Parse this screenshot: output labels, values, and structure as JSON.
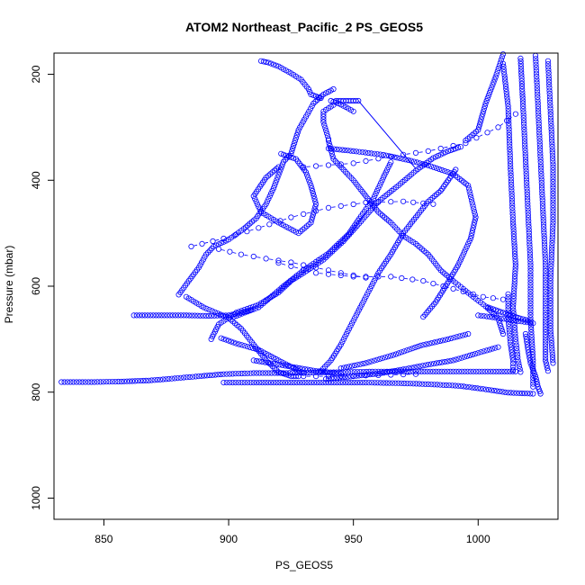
{
  "chart_data": {
    "type": "scatter",
    "title": "ATOM2 Northeast_Pacific_2 PS_GEOS5",
    "xlabel": "PS_GEOS5",
    "ylabel": "Pressure (mbar)",
    "xlim": [
      830,
      1032
    ],
    "ylim": [
      1040,
      160
    ],
    "y_reversed": true,
    "x_ticks": [
      850,
      900,
      950,
      1000
    ],
    "y_ticks": [
      200,
      400,
      600,
      800,
      1000
    ],
    "grid": false,
    "legend": "none",
    "marker": "open-circle",
    "color": "#0000ff",
    "series": [
      {
        "style": "points",
        "points": [
          [
            833,
            781
          ],
          [
            845,
            781
          ],
          [
            857,
            780
          ],
          [
            868,
            778
          ],
          [
            876,
            775
          ],
          [
            888,
            770
          ],
          [
            898,
            766
          ],
          [
            910,
            764
          ],
          [
            922,
            764
          ],
          [
            935,
            763
          ],
          [
            948,
            762
          ],
          [
            960,
            761
          ],
          [
            975,
            761
          ],
          [
            990,
            761
          ],
          [
            1005,
            761
          ],
          [
            1015,
            761
          ]
        ]
      },
      {
        "style": "points",
        "points": [
          [
            862,
            655
          ],
          [
            872,
            655
          ],
          [
            882,
            655
          ],
          [
            892,
            656
          ],
          [
            900,
            655
          ],
          [
            905,
            650
          ],
          [
            909,
            645
          ]
        ]
      },
      {
        "style": "points",
        "points": [
          [
            898,
            782
          ],
          [
            910,
            782
          ],
          [
            925,
            782
          ],
          [
            940,
            782
          ],
          [
            955,
            782
          ],
          [
            968,
            783
          ],
          [
            980,
            785
          ],
          [
            992,
            788
          ],
          [
            1002,
            794
          ],
          [
            1012,
            801
          ],
          [
            1022,
            803
          ]
        ]
      },
      {
        "style": "points",
        "points": [
          [
            943,
            250
          ],
          [
            946,
            250
          ],
          [
            949,
            250
          ],
          [
            952,
            250
          ]
        ]
      },
      {
        "style": "points",
        "points": [
          [
            880,
            616
          ],
          [
            884,
            590
          ],
          [
            888,
            565
          ],
          [
            891,
            540
          ],
          [
            894,
            525
          ],
          [
            900,
            512
          ],
          [
            906,
            492
          ],
          [
            911,
            472
          ],
          [
            915,
            445
          ],
          [
            918,
            415
          ],
          [
            920,
            390
          ],
          [
            922,
            365
          ],
          [
            925,
            350
          ],
          [
            928,
            305
          ],
          [
            931,
            280
          ],
          [
            934,
            255
          ],
          [
            938,
            238
          ],
          [
            942,
            228
          ]
        ]
      },
      {
        "style": "points",
        "points": [
          [
            883,
            620
          ],
          [
            890,
            640
          ],
          [
            900,
            660
          ],
          [
            905,
            680
          ],
          [
            915,
            740
          ],
          [
            920,
            762
          ],
          [
            925,
            770
          ],
          [
            928,
            770
          ]
        ]
      },
      {
        "style": "points",
        "points": [
          [
            893,
            700
          ],
          [
            896,
            672
          ],
          [
            903,
            650
          ],
          [
            912,
            635
          ],
          [
            920,
            612
          ],
          [
            925,
            590
          ],
          [
            930,
            575
          ],
          [
            938,
            550
          ],
          [
            946,
            515
          ],
          [
            953,
            478
          ],
          [
            960,
            440
          ],
          [
            968,
            410
          ],
          [
            975,
            382
          ],
          [
            982,
            358
          ],
          [
            988,
            345
          ],
          [
            993,
            337
          ]
        ]
      },
      {
        "style": "points",
        "points": [
          [
            913,
            175
          ],
          [
            916,
            178
          ],
          [
            920,
            185
          ],
          [
            925,
            198
          ],
          [
            929,
            210
          ],
          [
            932,
            228
          ],
          [
            933,
            238
          ],
          [
            937,
            245
          ]
        ]
      },
      {
        "style": "points",
        "points": [
          [
            921,
            350
          ],
          [
            927,
            360
          ],
          [
            931,
            385
          ],
          [
            933,
            410
          ],
          [
            935,
            445
          ],
          [
            933,
            480
          ],
          [
            928,
            500
          ],
          [
            920,
            480
          ],
          [
            913,
            460
          ],
          [
            910,
            430
          ],
          [
            915,
            395
          ],
          [
            920,
            375
          ]
        ]
      },
      {
        "style": "points",
        "points": [
          [
            937,
            760
          ],
          [
            941,
            740
          ],
          [
            945,
            710
          ],
          [
            950,
            665
          ],
          [
            955,
            620
          ],
          [
            960,
            575
          ],
          [
            965,
            540
          ],
          [
            970,
            500
          ],
          [
            975,
            470
          ],
          [
            980,
            440
          ],
          [
            985,
            420
          ],
          [
            988,
            400
          ],
          [
            991,
            380
          ]
        ]
      },
      {
        "style": "points",
        "points": [
          [
            940,
            325
          ],
          [
            942,
            360
          ],
          [
            950,
            400
          ],
          [
            955,
            430
          ],
          [
            960,
            460
          ],
          [
            965,
            480
          ],
          [
            970,
            505
          ],
          [
            975,
            520
          ],
          [
            980,
            540
          ],
          [
            985,
            570
          ],
          [
            990,
            590
          ],
          [
            994,
            605
          ],
          [
            998,
            620
          ],
          [
            1003,
            638
          ],
          [
            1008,
            660
          ],
          [
            1010,
            690
          ]
        ]
      },
      {
        "style": "points",
        "points": [
          [
            897,
            698
          ],
          [
            903,
            708
          ],
          [
            912,
            720
          ],
          [
            920,
            740
          ],
          [
            927,
            757
          ],
          [
            930,
            764
          ]
        ]
      },
      {
        "style": "points",
        "points": [
          [
            939,
            775
          ],
          [
            950,
            770
          ],
          [
            960,
            765
          ],
          [
            970,
            757
          ],
          [
            980,
            748
          ],
          [
            990,
            740
          ],
          [
            1000,
            726
          ],
          [
            1008,
            715
          ]
        ]
      },
      {
        "style": "points",
        "points": [
          [
            940,
            322
          ],
          [
            938,
            290
          ],
          [
            938,
            270
          ],
          [
            942,
            258
          ]
        ]
      },
      {
        "style": "points",
        "points": [
          [
            941,
            250
          ],
          [
            944,
            255
          ],
          [
            947,
            262
          ],
          [
            950,
            270
          ]
        ]
      },
      {
        "style": "points",
        "points": [
          [
            940,
            340
          ],
          [
            950,
            345
          ],
          [
            962,
            352
          ],
          [
            972,
            362
          ],
          [
            980,
            372
          ],
          [
            990,
            388
          ],
          [
            996,
            410
          ],
          [
            999,
            470
          ],
          [
            997,
            510
          ],
          [
            992,
            560
          ],
          [
            987,
            600
          ],
          [
            983,
            630
          ],
          [
            978,
            658
          ]
        ]
      },
      {
        "style": "points",
        "points": [
          [
            902,
            658
          ],
          [
            912,
            640
          ],
          [
            922,
            600
          ],
          [
            930,
            570
          ],
          [
            940,
            538
          ],
          [
            948,
            502
          ],
          [
            953,
            468
          ],
          [
            958,
            435
          ],
          [
            962,
            395
          ],
          [
            965,
            366
          ]
        ]
      },
      {
        "style": "points",
        "points": [
          [
            945,
            755
          ],
          [
            955,
            745
          ],
          [
            966,
            730
          ],
          [
            977,
            712
          ],
          [
            988,
            700
          ],
          [
            996,
            690
          ]
        ]
      },
      {
        "style": "points",
        "points": [
          [
            910,
            740
          ],
          [
            925,
            752
          ],
          [
            935,
            760
          ],
          [
            945,
            765
          ]
        ]
      },
      {
        "style": "points",
        "points": [
          [
            995,
            325
          ],
          [
            1000,
            305
          ],
          [
            1003,
            255
          ],
          [
            1007,
            205
          ],
          [
            1010,
            162
          ]
        ]
      },
      {
        "style": "points",
        "points": [
          [
            1010,
            180
          ],
          [
            1012,
            260
          ],
          [
            1013,
            380
          ],
          [
            1014,
            480
          ],
          [
            1015,
            560
          ],
          [
            1014,
            640
          ],
          [
            1015,
            700
          ],
          [
            1016,
            740
          ],
          [
            1017,
            762
          ]
        ]
      },
      {
        "style": "points",
        "points": [
          [
            1017,
            170
          ],
          [
            1018,
            260
          ],
          [
            1019,
            360
          ],
          [
            1020,
            460
          ],
          [
            1021,
            560
          ],
          [
            1021,
            660
          ],
          [
            1022,
            740
          ],
          [
            1022,
            790
          ]
        ]
      },
      {
        "style": "points",
        "points": [
          [
            1023,
            165
          ],
          [
            1024,
            260
          ],
          [
            1025,
            360
          ],
          [
            1026,
            460
          ],
          [
            1027,
            560
          ],
          [
            1027,
            660
          ],
          [
            1027,
            740
          ],
          [
            1028,
            760
          ]
        ]
      },
      {
        "style": "points",
        "points": [
          [
            1028,
            175
          ],
          [
            1029,
            270
          ],
          [
            1030,
            370
          ],
          [
            1030,
            480
          ],
          [
            1029,
            590
          ],
          [
            1029,
            680
          ],
          [
            1030,
            745
          ]
        ]
      },
      {
        "style": "points",
        "points": [
          [
            1012,
            615
          ],
          [
            1012,
            660
          ],
          [
            1013,
            710
          ],
          [
            1014,
            740
          ],
          [
            1014,
            758
          ]
        ]
      },
      {
        "style": "points",
        "points": [
          [
            1019,
            690
          ],
          [
            1020,
            720
          ],
          [
            1021,
            745
          ],
          [
            1023,
            770
          ],
          [
            1024,
            790
          ],
          [
            1025,
            803
          ]
        ]
      },
      {
        "style": "points",
        "points": [
          [
            1004,
            640
          ],
          [
            1010,
            650
          ],
          [
            1015,
            658
          ],
          [
            1020,
            665
          ]
        ]
      },
      {
        "style": "points",
        "points": [
          [
            1000,
            655
          ],
          [
            1008,
            660
          ],
          [
            1015,
            665
          ],
          [
            1022,
            670
          ]
        ]
      },
      {
        "style": "dashed",
        "points": [
          [
            930,
            375
          ],
          [
            950,
            368
          ],
          [
            965,
            355
          ],
          [
            980,
            345
          ],
          [
            995,
            330
          ],
          [
            1008,
            300
          ],
          [
            1015,
            275
          ]
        ]
      },
      {
        "style": "dashed",
        "points": [
          [
            885,
            525
          ],
          [
            898,
            510
          ],
          [
            912,
            490
          ],
          [
            925,
            470
          ],
          [
            940,
            452
          ],
          [
            955,
            442
          ],
          [
            970,
            440
          ],
          [
            982,
            445
          ]
        ]
      },
      {
        "style": "dashed",
        "points": [
          [
            896,
            530
          ],
          [
            905,
            540
          ],
          [
            915,
            548
          ],
          [
            925,
            555
          ],
          [
            935,
            565
          ],
          [
            945,
            575
          ],
          [
            955,
            584
          ]
        ]
      },
      {
        "style": "dashed",
        "points": [
          [
            920,
            556
          ],
          [
            935,
            575
          ],
          [
            950,
            582
          ],
          [
            965,
            582
          ],
          [
            978,
            590
          ],
          [
            990,
            605
          ],
          [
            1002,
            620
          ],
          [
            1010,
            625
          ]
        ]
      },
      {
        "style": "dashed",
        "points": [
          [
            930,
            770
          ],
          [
            945,
            770
          ],
          [
            960,
            768
          ],
          [
            975,
            766
          ]
        ]
      },
      {
        "style": "line",
        "points": [
          [
            952,
            250
          ],
          [
            975,
            378
          ]
        ]
      }
    ]
  }
}
